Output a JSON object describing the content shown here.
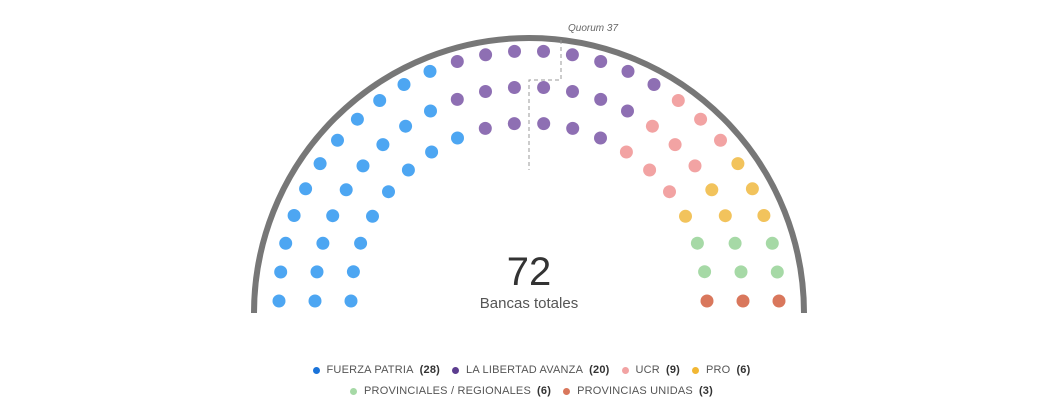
{
  "chart_data": {
    "type": "parliament",
    "total_seats": 72,
    "total_label": "Bancas totales",
    "quorum": 37,
    "quorum_label": "Quorum 37",
    "series": [
      {
        "name": "FUERZA PATRIA",
        "value": 28,
        "color": "#4da6f2"
      },
      {
        "name": "LA LIBERTAD AVANZA",
        "value": 20,
        "color": "#8e6fb3"
      },
      {
        "name": "UCR",
        "value": 9,
        "color": "#f2a3a3"
      },
      {
        "name": "PRO",
        "value": 6,
        "color": "#f2c35c"
      },
      {
        "name": "PROVINCIALES / REGIONALES",
        "value": 6,
        "color": "#a6d9a6"
      },
      {
        "name": "PROVINCIAS UNIDAS",
        "value": 3,
        "color": "#d9775c"
      }
    ]
  },
  "legend": {
    "row1": [
      {
        "name": "FUERZA PATRIA",
        "count": "(28)",
        "color": "#1a73d9"
      },
      {
        "name": "LA LIBERTAD AVANZA",
        "count": "(20)",
        "color": "#5c3d8f"
      },
      {
        "name": "UCR",
        "count": "(9)",
        "color": "#f2a3a3"
      },
      {
        "name": "PRO",
        "count": "(6)",
        "color": "#f2b733"
      }
    ],
    "row2": [
      {
        "name": "PROVINCIALES / REGIONALES",
        "count": "(6)",
        "color": "#a6d9a6"
      },
      {
        "name": "PROVINCIAS UNIDAS",
        "count": "(3)",
        "color": "#d9775c"
      }
    ]
  },
  "arc_color": "#777777"
}
